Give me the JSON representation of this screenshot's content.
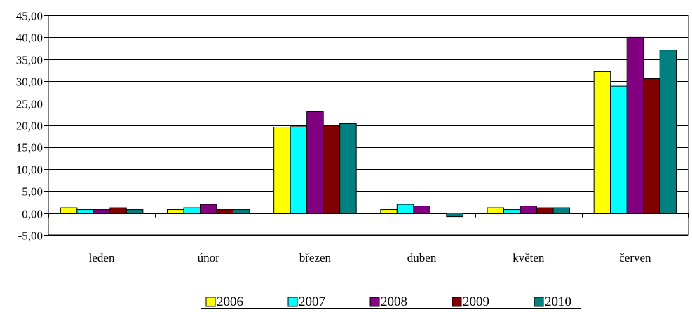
{
  "chart_data": {
    "type": "bar",
    "title": "",
    "xlabel": "",
    "ylabel": "",
    "categories": [
      "leden",
      "únor",
      "březen",
      "duben",
      "květen",
      "červen"
    ],
    "series": [
      {
        "name": "2006",
        "color": "#FFFF00",
        "values": [
          1.2,
          0.8,
          19.6,
          0.8,
          1.2,
          32.2
        ]
      },
      {
        "name": "2007",
        "color": "#00FFFF",
        "values": [
          0.8,
          1.2,
          19.7,
          2.0,
          0.8,
          28.9
        ]
      },
      {
        "name": "2008",
        "color": "#800080",
        "values": [
          0.8,
          2.0,
          23.1,
          1.6,
          1.6,
          40.0
        ]
      },
      {
        "name": "2009",
        "color": "#800000",
        "values": [
          1.2,
          0.8,
          20.0,
          0.0,
          1.2,
          30.6
        ]
      },
      {
        "name": "2010",
        "color": "#008080",
        "values": [
          0.8,
          0.8,
          20.4,
          -0.8,
          1.2,
          37.1
        ]
      }
    ],
    "ylim": [
      -5,
      45
    ],
    "yticks": [
      "-5,00",
      "0,00",
      "5,00",
      "10,00",
      "15,00",
      "20,00",
      "25,00",
      "30,00",
      "35,00",
      "40,00",
      "45,00"
    ],
    "grid": true,
    "legend_position": "bottom"
  }
}
